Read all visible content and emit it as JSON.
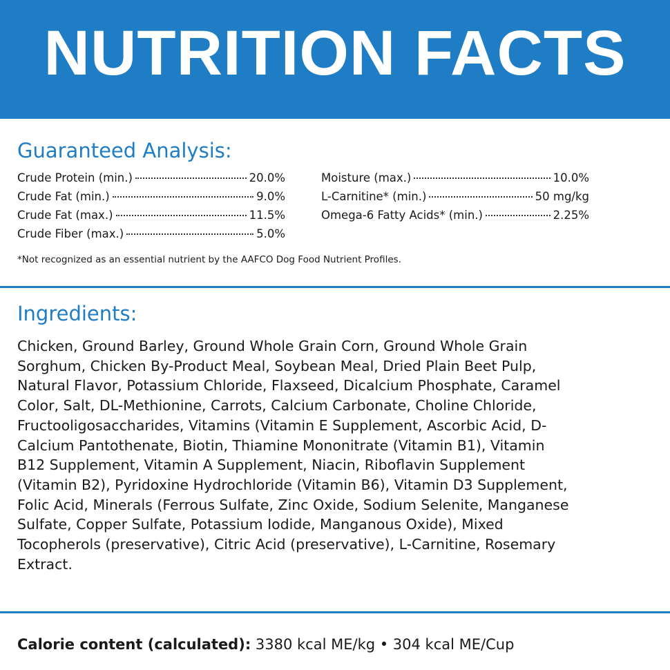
{
  "header": {
    "title": "NUTRITION FACTS"
  },
  "guaranteed_analysis": {
    "heading": "Guaranteed Analysis:",
    "left": [
      {
        "label": "Crude Protein (min.)",
        "value": "20.0%"
      },
      {
        "label": "Crude Fat (min.)",
        "value": "9.0%"
      },
      {
        "label": "Crude Fat (max.)",
        "value": "11.5%"
      },
      {
        "label": "Crude Fiber (max.)",
        "value": "5.0%"
      }
    ],
    "right": [
      {
        "label": "Moisture (max.)",
        "value": "10.0%"
      },
      {
        "label": "L-Carnitine* (min.)",
        "value": "50 mg/kg"
      },
      {
        "label": "Omega-6 Fatty Acids* (min.)",
        "value": "2.25%"
      }
    ],
    "footnote": "*Not recognized as an essential nutrient by the AAFCO Dog Food Nutrient Profiles."
  },
  "ingredients": {
    "heading": "Ingredients:",
    "text": "Chicken, Ground Barley, Ground Whole Grain Corn, Ground Whole Grain Sorghum, Chicken By-Product Meal, Soybean Meal, Dried Plain Beet Pulp, Natural Flavor, Potassium Chloride, Flaxseed, Dicalcium Phosphate, Caramel Color, Salt, DL-Methionine, Carrots, Calcium Carbonate, Choline Chloride, Fructooligosaccharides, Vitamins (Vitamin E Supplement, Ascorbic Acid, D-Calcium Pantothenate, Biotin, Thiamine Mononitrate (Vitamin B1), Vitamin B12 Supplement, Vitamin A Supplement, Niacin, Riboflavin Supplement (Vitamin B2), Pyridoxine Hydrochloride (Vitamin B6), Vitamin D3 Supplement, Folic Acid, Minerals (Ferrous Sulfate, Zinc Oxide, Sodium Selenite, Manganese Sulfate, Copper Sulfate, Potassium Iodide, Manganous Oxide), Mixed Tocopherols (preservative), Citric Acid (preservative), L-Carnitine, Rosemary Extract."
  },
  "calorie_content": {
    "label": "Calorie content (calculated):",
    "value": "3380 kcal ME/kg • 304 kcal ME/Cup"
  }
}
